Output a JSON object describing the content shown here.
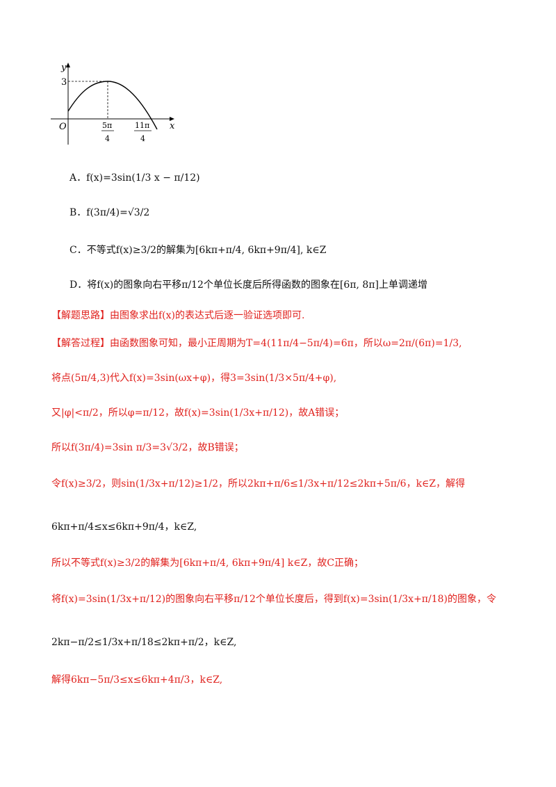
{
  "graph": {
    "y_axis_label": "y",
    "x_axis_label": "x",
    "origin_label": "O",
    "y_tick": "3",
    "x_tick_1": "5π/4",
    "x_tick_2": "11π/4"
  },
  "options": {
    "a": "A．f(x)=3sin(1/3 x − π/12)",
    "b": "B．f(3π/4)=√3/2",
    "c": "C．不等式f(x)≥3/2的解集为[6kπ+π/4, 6kπ+9π/4], k∈Z",
    "d": "D．将f(x)的图象向右平移π/12个单位长度后所得函数的图象在[6π, 8π]上单调递增"
  },
  "solution": {
    "idea": "【解题思路】由图象求出f(x)的表达式后逐一验证选项即可.",
    "s1": "【解答过程】由函数图象可知，最小正周期为T=4(11π/4−5π/4)=6π，所以ω=2π/(6π)=1/3,",
    "s2": "将点(5π/4,3)代入f(x)=3sin(ωx+φ)，得3=3sin(1/3×5π/4+φ),",
    "s3": "又|φ|<π/2，所以φ=π/12，故f(x)=3sin(1/3x+π/12)，故A错误；",
    "s4": "所以f(3π/4)=3sin π/3=3√3/2，故B错误；",
    "s5": "令f(x)≥3/2，则sin(1/3x+π/12)≥1/2，所以2kπ+π/6≤1/3x+π/12≤2kπ+5π/6，k∈Z，解得",
    "s6": "6kπ+π/4≤x≤6kπ+9π/4，k∈Z,",
    "s7": "所以不等式f(x)≥3/2的解集为[6kπ+π/4, 6kπ+9π/4] k∈Z，故C正确；",
    "s8": "将f(x)=3sin(1/3x+π/12)的图象向右平移π/12个单位长度后，得到f(x)=3sin(1/3x+π/18)的图象，令",
    "s9": "2kπ−π/2≤1/3x+π/18≤2kπ+π/2，k∈Z,",
    "s10": "解得6kπ−5π/3≤x≤6kπ+4π/3，k∈Z,"
  }
}
